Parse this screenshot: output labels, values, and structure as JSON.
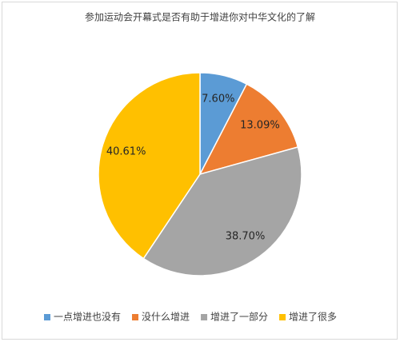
{
  "chart_data": {
    "type": "pie",
    "title": "参加运动会开幕式是否有助于增进你对中华文化的了解",
    "categories": [
      "一点增进也没有",
      "没什么增进",
      "增进了一部分",
      "增进了很多"
    ],
    "values": [
      7.6,
      13.09,
      38.7,
      40.61
    ],
    "value_labels": [
      "7.60%",
      "13.09%",
      "38.70%",
      "40.61%"
    ],
    "colors": [
      "#5b9bd5",
      "#ed7d31",
      "#a5a5a5",
      "#ffc000"
    ],
    "legend": "bottom"
  }
}
